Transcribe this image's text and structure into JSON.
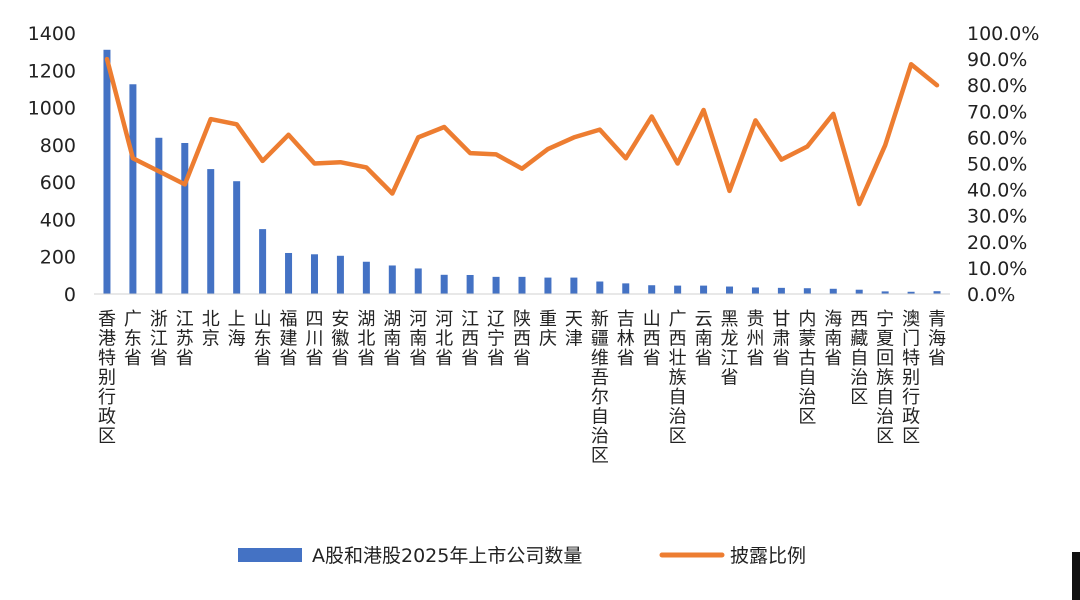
{
  "chart_data": {
    "type": "bar",
    "categories": [
      "香港特别行政区",
      "广东省",
      "浙江省",
      "江苏省",
      "北京",
      "上海",
      "山东省",
      "福建省",
      "四川省",
      "安徽省",
      "湖北省",
      "湖南省",
      "河南省",
      "河北省",
      "江西省",
      "辽宁省",
      "陕西省",
      "重庆",
      "天津",
      "新疆维吾尔自治区",
      "吉林省",
      "山西省",
      "广西壮族自治区",
      "云南省",
      "黑龙江省",
      "贵州省",
      "甘肃省",
      "内蒙古自治区",
      "海南省",
      "西藏自治区",
      "宁夏回族自治区",
      "澳门特别行政区",
      "青海省"
    ],
    "series": [
      {
        "name": "A股和港股2025年上市公司数量",
        "type": "bar",
        "axis": "left",
        "color": "#4472C4",
        "values": [
          1310,
          1125,
          838,
          810,
          670,
          605,
          348,
          220,
          213,
          205,
          173,
          153,
          137,
          103,
          102,
          92,
          92,
          88,
          88,
          67,
          57,
          47,
          45,
          45,
          40,
          35,
          33,
          31,
          28,
          23,
          14,
          12,
          15
        ]
      },
      {
        "name": "披露比例",
        "type": "line",
        "axis": "right",
        "color": "#ED7D31",
        "values": [
          0.9,
          0.52,
          0.47,
          0.42,
          0.67,
          0.65,
          0.51,
          0.61,
          0.5,
          0.505,
          0.485,
          0.385,
          0.6,
          0.64,
          0.54,
          0.535,
          0.48,
          0.555,
          0.6,
          0.63,
          0.52,
          0.68,
          0.5,
          0.705,
          0.395,
          0.665,
          0.515,
          0.565,
          0.69,
          0.345,
          0.57,
          0.88,
          0.8
        ]
      }
    ],
    "y_left": {
      "min": 0,
      "max": 1400,
      "step": 200,
      "ticks": [
        "0",
        "200",
        "400",
        "600",
        "800",
        "1000",
        "1200",
        "1400"
      ]
    },
    "y_right": {
      "min": 0,
      "max": 1.0,
      "step": 0.1,
      "ticks": [
        "0.0%",
        "10.0%",
        "20.0%",
        "30.0%",
        "40.0%",
        "50.0%",
        "60.0%",
        "70.0%",
        "80.0%",
        "90.0%",
        "100.0%"
      ]
    },
    "grid": false,
    "legend": {
      "position": "bottom",
      "entries": [
        "A股和港股2025年上市公司数量",
        "披露比例"
      ]
    }
  }
}
